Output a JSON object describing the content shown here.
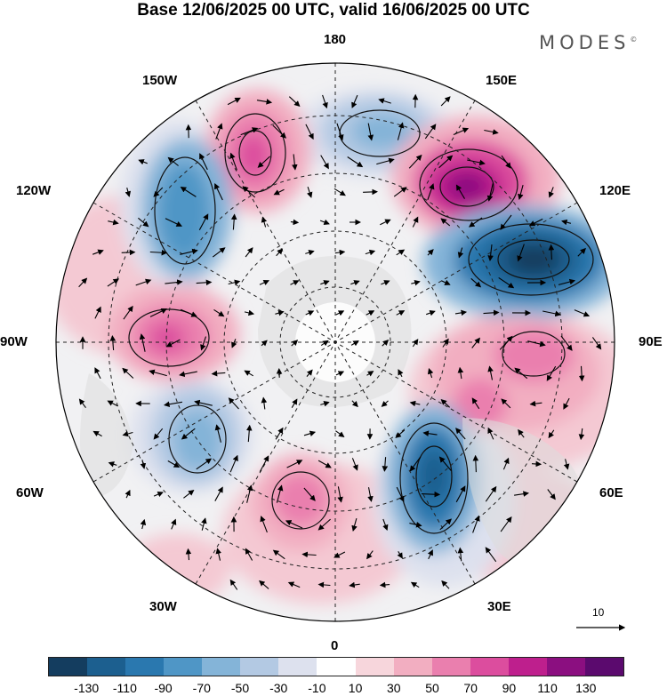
{
  "title": "Base 12/06/2025 00 UTC, valid 16/06/2025 00 UTC",
  "brand": "MODES",
  "brand_mark": "©",
  "longitude_labels": {
    "n180": "180",
    "w150": "150W",
    "e150": "150E",
    "w120": "120W",
    "e120": "120E",
    "w90": "90W",
    "e90": "90E",
    "w60": "60W",
    "e60": "60E",
    "w30": "30W",
    "e30": "30E",
    "s0": "0"
  },
  "reference_vector": {
    "value": "10"
  },
  "colorbar": {
    "colors": [
      "#143d5f",
      "#1c5f8f",
      "#2a78af",
      "#4f96c6",
      "#84b4d8",
      "#b3c9e3",
      "#dde1ee",
      "#ffffff",
      "#f7d6dc",
      "#f2aec1",
      "#ea7fae",
      "#dc4d9e",
      "#be1f8d",
      "#8b0f80",
      "#5b0a6e"
    ],
    "labels": [
      "-130",
      "-110",
      "-90",
      "-70",
      "-50",
      "-30",
      "-10",
      "10",
      "30",
      "50",
      "70",
      "90",
      "110",
      "130"
    ]
  },
  "anomaly_centers": [
    {
      "sign": "positive",
      "level": 90,
      "lon": "150W"
    },
    {
      "sign": "negative",
      "level": -50,
      "lon": "180"
    },
    {
      "sign": "positive",
      "level": 110,
      "lon": "150E"
    },
    {
      "sign": "negative",
      "level": -70,
      "lon": "135W"
    },
    {
      "sign": "negative",
      "level": -130,
      "lon": "120E"
    },
    {
      "sign": "positive",
      "level": 70,
      "lon": "90W"
    },
    {
      "sign": "positive",
      "level": 70,
      "lon": "90E"
    },
    {
      "sign": "negative",
      "level": -50,
      "lon": "60W"
    },
    {
      "sign": "positive",
      "level": 70,
      "lon": "15W"
    },
    {
      "sign": "negative",
      "level": -90,
      "lon": "30E"
    },
    {
      "sign": "positive",
      "level": 50,
      "lon": "60E"
    }
  ]
}
